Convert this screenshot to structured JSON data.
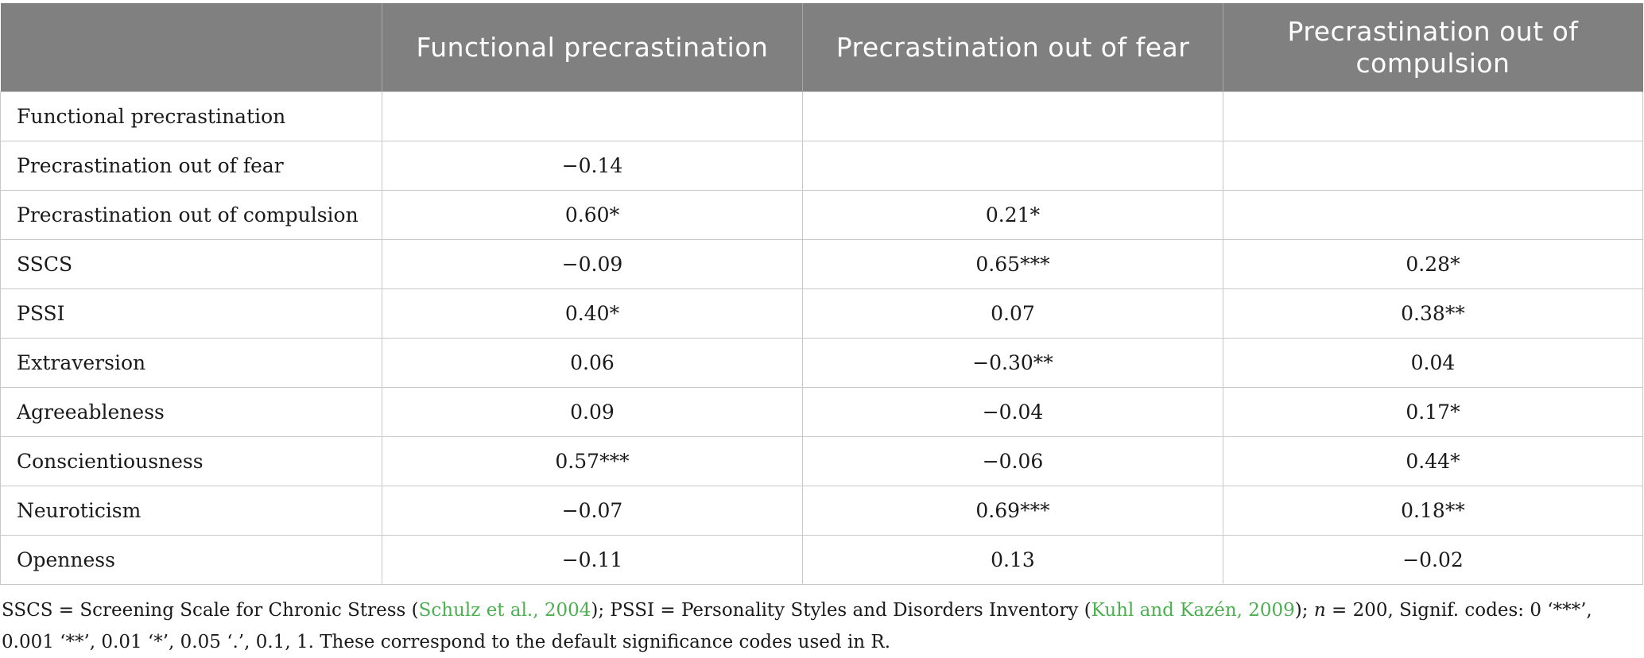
{
  "table": {
    "columns": [
      "",
      "Functional precrastination",
      "Precrastination out of fear",
      "Precrastination out of compulsion"
    ],
    "rows": [
      {
        "label": "Functional precrastination",
        "cells": [
          "",
          "",
          ""
        ]
      },
      {
        "label": "Precrastination out of fear",
        "cells": [
          "−0.14",
          "",
          ""
        ]
      },
      {
        "label": "Precrastination out of compulsion",
        "cells": [
          "0.60*",
          "0.21*",
          ""
        ]
      },
      {
        "label": "SSCS",
        "cells": [
          "−0.09",
          "0.65***",
          "0.28*"
        ]
      },
      {
        "label": "PSSI",
        "cells": [
          "0.40*",
          "0.07",
          "0.38**"
        ]
      },
      {
        "label": "Extraversion",
        "cells": [
          "0.06",
          "−0.30**",
          "0.04"
        ]
      },
      {
        "label": "Agreeableness",
        "cells": [
          "0.09",
          "−0.04",
          "0.17*"
        ]
      },
      {
        "label": "Conscientiousness",
        "cells": [
          "0.57***",
          "−0.06",
          "0.44*"
        ]
      },
      {
        "label": "Neuroticism",
        "cells": [
          "−0.07",
          "0.69***",
          "0.18**"
        ]
      },
      {
        "label": "Openness",
        "cells": [
          "−0.11",
          "0.13",
          "−0.02"
        ]
      }
    ]
  },
  "footnote": {
    "part1": "SSCS = Screening Scale for Chronic Stress (",
    "cite1": "Schulz et al., 2004",
    "part2": "); PSSI = Personality Styles and Disorders Inventory (",
    "cite2": "Kuhl and Kazén, 2009",
    "part3": "); ",
    "n_symbol": "n",
    "part4": " = 200, Signif. codes: 0 ‘***’, 0.001 ‘**’, 0.01 ‘*’, 0.05 ‘.’, 0.1, 1. These correspond to the default significance codes used in R."
  },
  "colors": {
    "header_bg": "#808080",
    "header_text": "#ffffff",
    "grid": "#c9c9c9",
    "citation": "#4caf50"
  }
}
